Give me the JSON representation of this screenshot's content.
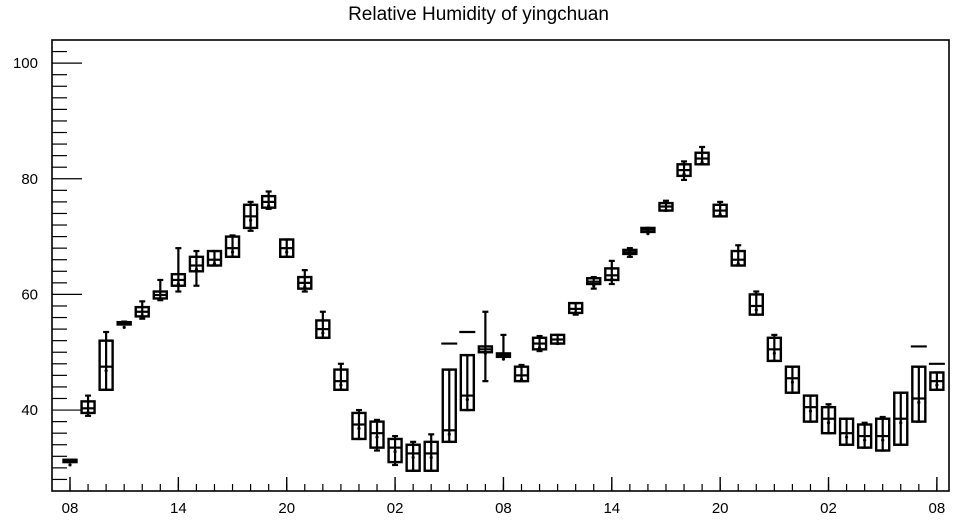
{
  "chart_data": {
    "type": "boxplot",
    "title": "Relative Humidity of yingchuan",
    "xlabel": "",
    "ylabel": "",
    "ylim": [
      26,
      104
    ],
    "yticks": [
      40,
      60,
      80,
      100
    ],
    "xticks": [
      {
        "i": 0,
        "label": "08"
      },
      {
        "i": 6,
        "label": "14"
      },
      {
        "i": 12,
        "label": "20"
      },
      {
        "i": 18,
        "label": "02"
      },
      {
        "i": 24,
        "label": "08"
      },
      {
        "i": 30,
        "label": "14"
      },
      {
        "i": 36,
        "label": "20"
      },
      {
        "i": 42,
        "label": "02"
      },
      {
        "i": 48,
        "label": "08"
      }
    ],
    "grid": false,
    "boxes": [
      {
        "i": 0,
        "q1": 31.0,
        "q3": 31.4,
        "median": 31.2,
        "wlo": 31.0,
        "whi": 31.4
      },
      {
        "i": 1,
        "q1": 39.5,
        "q3": 41.5,
        "median": 40.3,
        "wlo": 39.0,
        "whi": 42.5
      },
      {
        "i": 2,
        "q1": 43.5,
        "q3": 52.0,
        "median": 47.5,
        "wlo": 43.5,
        "whi": 53.5
      },
      {
        "i": 3,
        "q1": 54.8,
        "q3": 55.2,
        "median": 55.0,
        "wlo": 54.8,
        "whi": 55.3
      },
      {
        "i": 4,
        "q1": 56.2,
        "q3": 57.8,
        "median": 57.0,
        "wlo": 55.8,
        "whi": 58.8
      },
      {
        "i": 5,
        "q1": 59.3,
        "q3": 60.5,
        "median": 59.9,
        "wlo": 59.0,
        "whi": 62.5
      },
      {
        "i": 6,
        "q1": 61.5,
        "q3": 63.5,
        "median": 62.5,
        "wlo": 60.5,
        "whi": 68.0
      },
      {
        "i": 7,
        "q1": 64.0,
        "q3": 66.5,
        "median": 65.0,
        "wlo": 61.5,
        "whi": 67.5
      },
      {
        "i": 8,
        "q1": 65.0,
        "q3": 67.5,
        "median": 66.0,
        "wlo": 65.0,
        "whi": 67.5
      },
      {
        "i": 9,
        "q1": 66.5,
        "q3": 70.0,
        "median": 68.0,
        "wlo": 66.5,
        "whi": 70.2
      },
      {
        "i": 10,
        "q1": 71.5,
        "q3": 75.5,
        "median": 73.5,
        "wlo": 71.0,
        "whi": 76.0
      },
      {
        "i": 11,
        "q1": 75.0,
        "q3": 77.0,
        "median": 76.0,
        "wlo": 74.8,
        "whi": 77.8
      },
      {
        "i": 12,
        "q1": 66.5,
        "q3": 69.5,
        "median": 68.0,
        "wlo": 66.5,
        "whi": 69.5
      },
      {
        "i": 13,
        "q1": 61.0,
        "q3": 63.0,
        "median": 62.0,
        "wlo": 60.5,
        "whi": 64.2
      },
      {
        "i": 14,
        "q1": 52.5,
        "q3": 55.5,
        "median": 54.0,
        "wlo": 52.5,
        "whi": 57.0
      },
      {
        "i": 15,
        "q1": 43.5,
        "q3": 47.0,
        "median": 45.0,
        "wlo": 43.5,
        "whi": 48.0
      },
      {
        "i": 16,
        "q1": 35.0,
        "q3": 39.5,
        "median": 37.5,
        "wlo": 35.0,
        "whi": 40.0
      },
      {
        "i": 17,
        "q1": 33.5,
        "q3": 38.0,
        "median": 36.0,
        "wlo": 33.0,
        "whi": 38.3
      },
      {
        "i": 18,
        "q1": 31.0,
        "q3": 35.0,
        "median": 33.5,
        "wlo": 30.5,
        "whi": 35.5
      },
      {
        "i": 19,
        "q1": 29.5,
        "q3": 34.0,
        "median": 32.5,
        "wlo": 29.5,
        "whi": 34.5
      },
      {
        "i": 20,
        "q1": 29.5,
        "q3": 34.5,
        "median": 32.5,
        "wlo": 29.5,
        "whi": 35.8
      },
      {
        "i": 21,
        "q1": 34.5,
        "q3": 47.0,
        "median": 36.5,
        "wlo": 34.5,
        "whi": 47.0
      },
      {
        "i": 22,
        "q1": 40.0,
        "q3": 49.5,
        "median": 42.5,
        "wlo": 40.0,
        "whi": 49.5
      },
      {
        "i": 23,
        "q1": 50.0,
        "q3": 51.0,
        "median": 50.5,
        "wlo": 45.0,
        "whi": 57.0
      },
      {
        "i": 24,
        "q1": 49.2,
        "q3": 49.8,
        "median": 49.5,
        "wlo": 49.2,
        "whi": 53.0
      },
      {
        "i": 25,
        "q1": 45.0,
        "q3": 47.5,
        "median": 46.0,
        "wlo": 45.0,
        "whi": 47.8
      },
      {
        "i": 26,
        "q1": 50.5,
        "q3": 52.5,
        "median": 51.5,
        "wlo": 50.2,
        "whi": 52.8
      },
      {
        "i": 27,
        "q1": 51.5,
        "q3": 53.0,
        "median": 52.2,
        "wlo": 51.5,
        "whi": 53.0
      },
      {
        "i": 28,
        "q1": 56.8,
        "q3": 58.5,
        "median": 57.5,
        "wlo": 56.5,
        "whi": 58.5
      },
      {
        "i": 29,
        "q1": 61.8,
        "q3": 62.8,
        "median": 62.2,
        "wlo": 61.0,
        "whi": 63.0
      },
      {
        "i": 30,
        "q1": 62.5,
        "q3": 64.5,
        "median": 63.3,
        "wlo": 61.8,
        "whi": 65.8
      },
      {
        "i": 31,
        "q1": 67.0,
        "q3": 67.7,
        "median": 67.3,
        "wlo": 66.5,
        "whi": 68.0
      },
      {
        "i": 32,
        "q1": 70.8,
        "q3": 71.5,
        "median": 71.2,
        "wlo": 70.8,
        "whi": 71.5
      },
      {
        "i": 33,
        "q1": 74.5,
        "q3": 75.8,
        "median": 75.2,
        "wlo": 74.5,
        "whi": 76.2
      },
      {
        "i": 34,
        "q1": 80.5,
        "q3": 82.5,
        "median": 81.5,
        "wlo": 79.8,
        "whi": 83.0
      },
      {
        "i": 35,
        "q1": 82.5,
        "q3": 84.5,
        "median": 83.5,
        "wlo": 82.5,
        "whi": 85.5
      },
      {
        "i": 36,
        "q1": 73.5,
        "q3": 75.5,
        "median": 74.5,
        "wlo": 73.5,
        "whi": 76.0
      },
      {
        "i": 37,
        "q1": 65.0,
        "q3": 67.5,
        "median": 66.0,
        "wlo": 65.0,
        "whi": 68.5
      },
      {
        "i": 38,
        "q1": 56.5,
        "q3": 60.0,
        "median": 58.0,
        "wlo": 56.5,
        "whi": 60.5
      },
      {
        "i": 39,
        "q1": 48.5,
        "q3": 52.5,
        "median": 50.5,
        "wlo": 48.5,
        "whi": 53.0
      },
      {
        "i": 40,
        "q1": 43.0,
        "q3": 47.5,
        "median": 45.5,
        "wlo": 43.0,
        "whi": 47.5
      },
      {
        "i": 41,
        "q1": 38.0,
        "q3": 42.5,
        "median": 40.5,
        "wlo": 38.0,
        "whi": 42.5
      },
      {
        "i": 42,
        "q1": 36.0,
        "q3": 40.5,
        "median": 38.5,
        "wlo": 36.0,
        "whi": 41.0
      },
      {
        "i": 43,
        "q1": 34.0,
        "q3": 38.5,
        "median": 36.0,
        "wlo": 34.0,
        "whi": 38.5
      },
      {
        "i": 44,
        "q1": 33.5,
        "q3": 37.5,
        "median": 35.5,
        "wlo": 33.5,
        "whi": 37.8
      },
      {
        "i": 45,
        "q1": 33.0,
        "q3": 38.5,
        "median": 35.5,
        "wlo": 33.0,
        "whi": 38.8
      },
      {
        "i": 46,
        "q1": 34.0,
        "q3": 43.0,
        "median": 38.5,
        "wlo": 34.0,
        "whi": 43.0
      },
      {
        "i": 47,
        "q1": 38.0,
        "q3": 47.5,
        "median": 42.0,
        "wlo": 38.0,
        "whi": 47.5
      },
      {
        "i": 48,
        "q1": 43.5,
        "q3": 46.5,
        "median": 45.0,
        "wlo": 43.5,
        "whi": 46.5
      }
    ],
    "markers": [
      {
        "i": 21,
        "value": 51.5
      },
      {
        "i": 22,
        "value": 53.5
      },
      {
        "i": 47,
        "value": 51.0
      },
      {
        "i": 48,
        "value": 48.0
      }
    ]
  }
}
